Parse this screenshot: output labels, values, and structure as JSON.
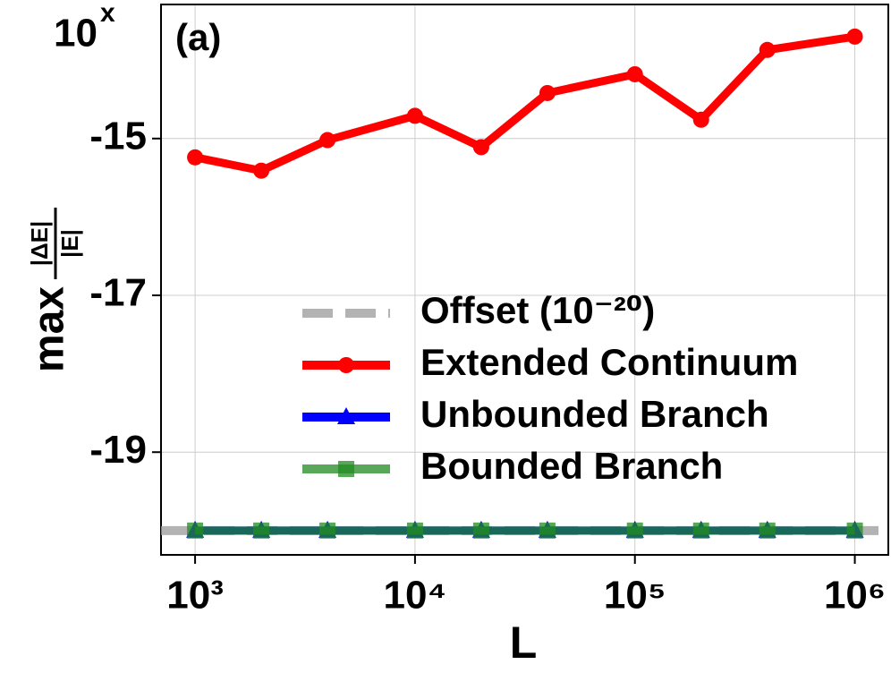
{
  "chart_data": {
    "type": "line",
    "annotation": "(a)",
    "xlabel": "L",
    "ylabel": "max",
    "ylabel_fraction": {
      "numerator": "|ΔE|",
      "denominator": "|E|"
    },
    "ytick_base": {
      "base": "10",
      "exponent": "x"
    },
    "xscale": "log",
    "grid": true,
    "legend": "lower right",
    "x": [
      1000,
      2000,
      4000,
      10000,
      20000,
      40000,
      100000,
      200000,
      400000,
      1000000
    ],
    "xlim": [
      700,
      1420000
    ],
    "xticks": [
      {
        "value": 1000,
        "label": "10³"
      },
      {
        "value": 10000,
        "label": "10⁴"
      },
      {
        "value": 100000,
        "label": "10⁵"
      },
      {
        "value": 1000000,
        "label": "10⁶"
      }
    ],
    "ylim": [
      -20.31,
      -13.29
    ],
    "yticks": [
      -15,
      -17,
      -19
    ],
    "series": [
      {
        "name": "Offset (10⁻²⁰)",
        "color": "#a0a0a0",
        "linestyle": "dashed",
        "y": -20
      },
      {
        "name": "Extended Continuum",
        "color": "#ff0000",
        "marker": "circle",
        "values": [
          -15.24,
          -15.41,
          -15.02,
          -14.71,
          -15.11,
          -14.42,
          -14.18,
          -14.76,
          -13.87,
          -13.7
        ]
      },
      {
        "name": "Unbounded Branch",
        "color": "#0000ff",
        "marker": "triangle",
        "values": [
          -20,
          -20,
          -20,
          -20,
          -20,
          -20,
          -20,
          -20,
          -20,
          -20
        ]
      },
      {
        "name": "Bounded Branch",
        "color": "#228b22",
        "marker": "square",
        "opacity": 0.75,
        "values": [
          -20,
          -20,
          -20,
          -20,
          -20,
          -20,
          -20,
          -20,
          -20,
          -20
        ]
      }
    ]
  }
}
